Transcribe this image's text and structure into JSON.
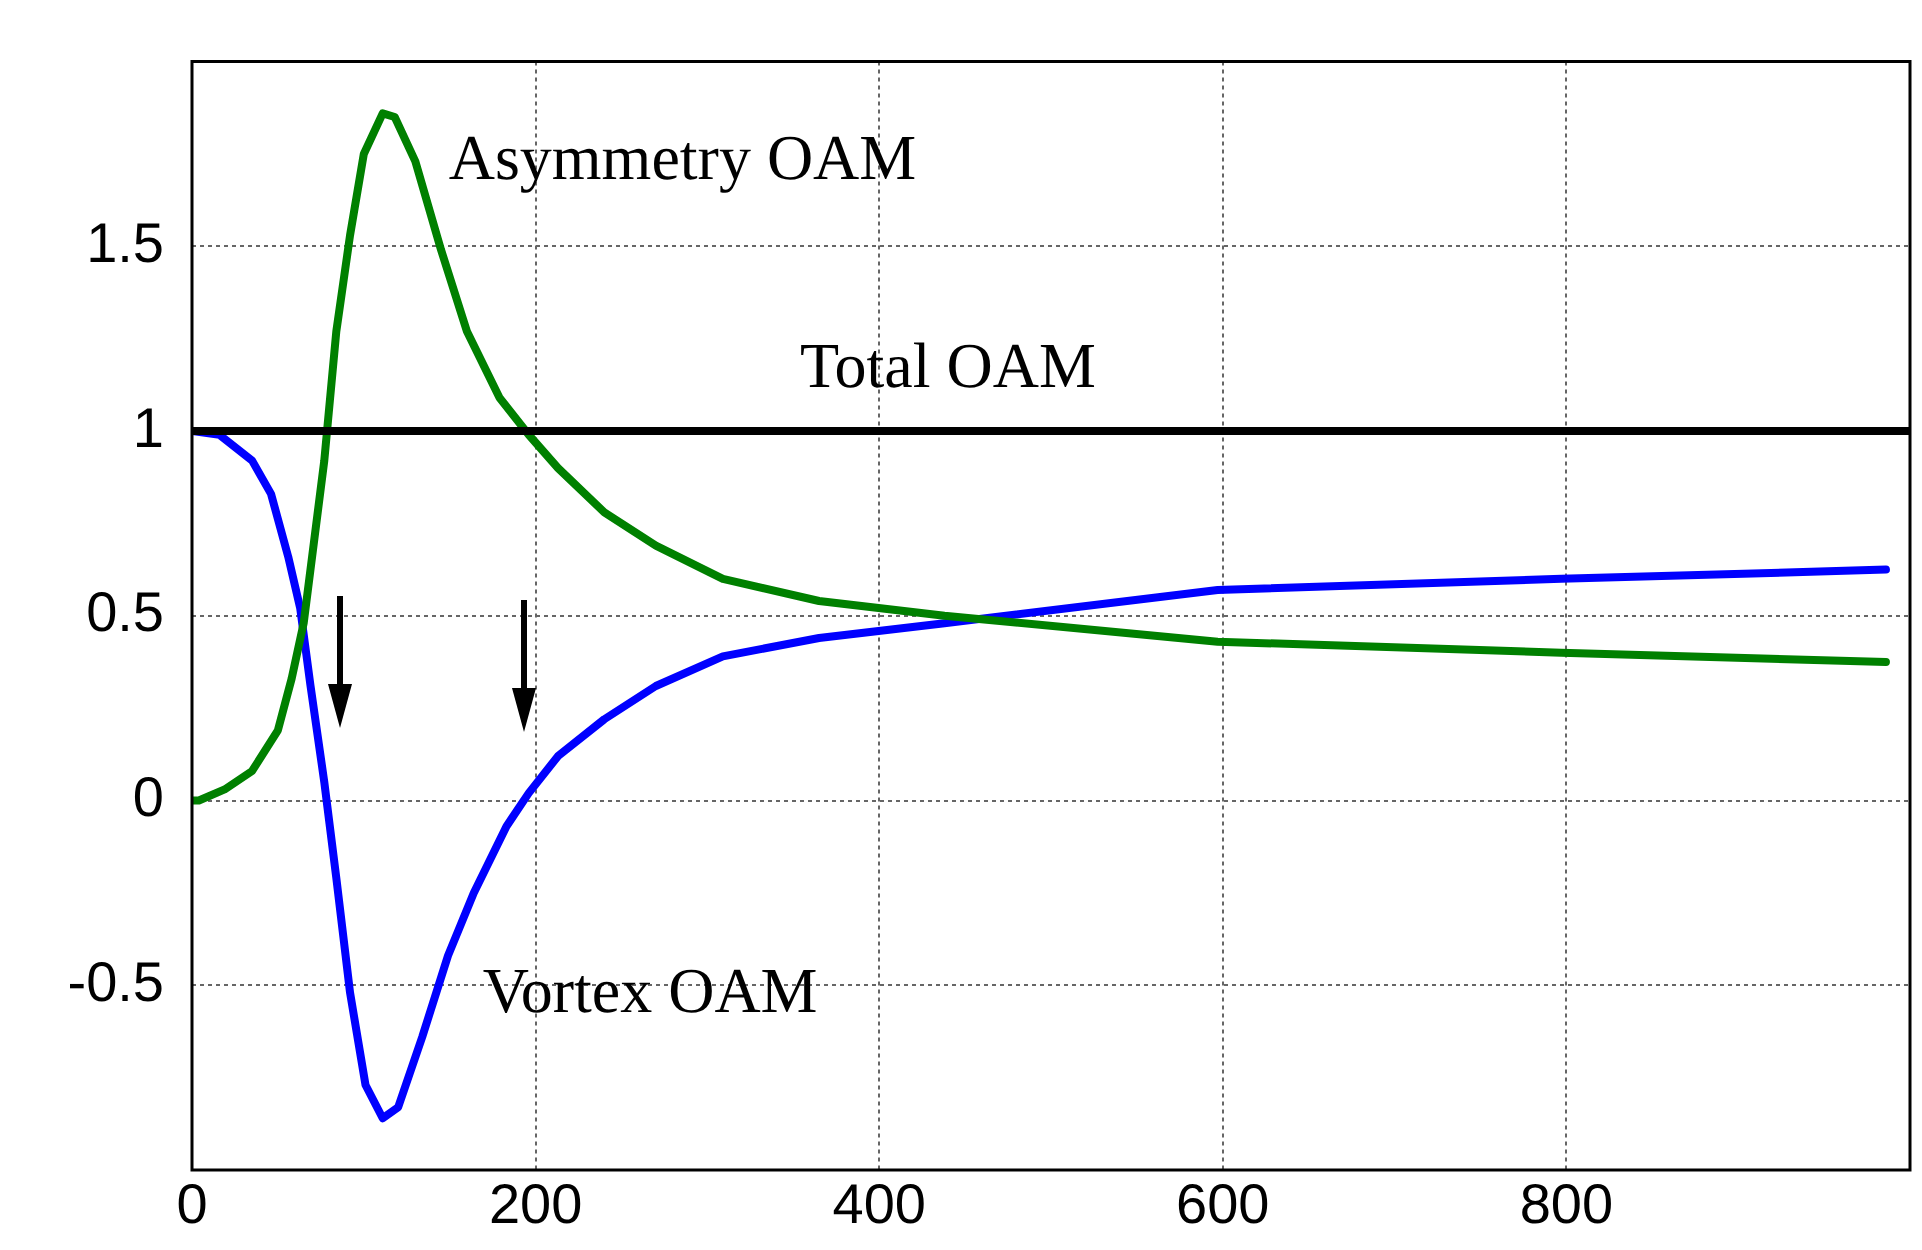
{
  "chart_data": {
    "type": "line",
    "xlim": [
      0,
      1000
    ],
    "xticks": [
      0,
      200,
      400,
      600,
      800
    ],
    "ylim": [
      -1,
      2
    ],
    "yticks": [
      -0.5,
      0,
      0.5,
      1,
      1.5
    ],
    "grid": true,
    "marker": "none",
    "series": [
      {
        "name": "Total OAM",
        "color": "#000000",
        "x": [
          0,
          1000
        ],
        "values": [
          1,
          1
        ]
      },
      {
        "name": "Asymmetry OAM",
        "color": "#008000",
        "x": [
          0,
          4,
          19,
          35,
          50,
          58,
          65,
          77,
          84,
          92,
          100,
          111,
          118,
          130,
          145,
          160,
          179,
          196,
          213,
          240,
          270,
          309,
          365,
          438,
          597,
          797,
          986
        ],
        "values": [
          0,
          0,
          0.03,
          0.08,
          0.19,
          0.33,
          0.48,
          0.92,
          1.27,
          1.53,
          1.75,
          1.86,
          1.85,
          1.73,
          1.49,
          1.27,
          1.09,
          0.99,
          0.9,
          0.78,
          0.69,
          0.6,
          0.54,
          0.5,
          0.43,
          0.4,
          0.375
        ]
      },
      {
        "name": "Vortex OAM",
        "color": "#0000ff",
        "x": [
          0,
          16,
          35,
          46,
          56,
          63,
          69,
          77,
          84,
          92,
          101,
          111,
          120,
          134,
          149,
          164,
          183,
          196,
          213,
          240,
          270,
          309,
          365,
          438,
          597,
          797,
          986
        ],
        "values": [
          1,
          0.99,
          0.92,
          0.83,
          0.66,
          0.52,
          0.31,
          0.05,
          -0.21,
          -0.52,
          -0.77,
          -0.86,
          -0.83,
          -0.64,
          -0.42,
          -0.25,
          -0.07,
          0.02,
          0.12,
          0.22,
          0.31,
          0.39,
          0.44,
          0.48,
          0.57,
          0.6,
          0.625
        ]
      }
    ]
  }
}
